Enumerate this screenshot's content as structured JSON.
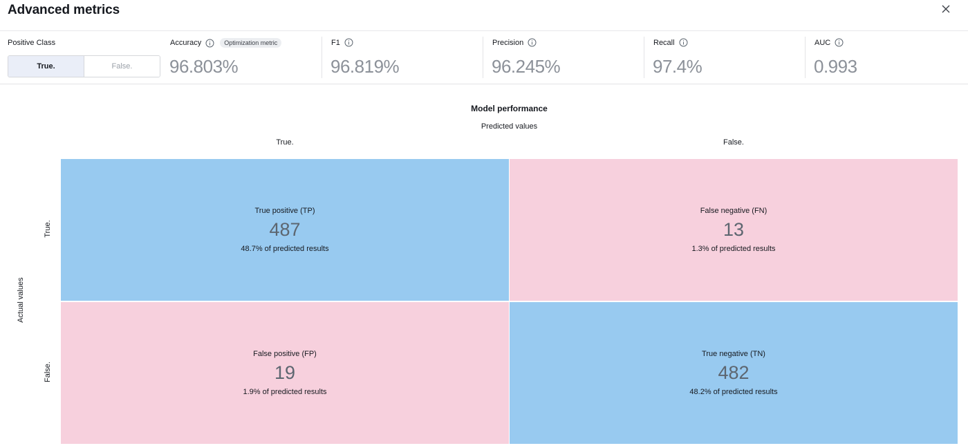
{
  "header": {
    "title": "Advanced metrics",
    "close_icon": "close-icon"
  },
  "positive_class": {
    "label": "Positive Class",
    "options": [
      "True.",
      "False."
    ],
    "selected": "True."
  },
  "metrics": [
    {
      "key": "accuracy",
      "label": "Accuracy",
      "value": "96.803%",
      "badge": "Optimization metric"
    },
    {
      "key": "f1",
      "label": "F1",
      "value": "96.819%"
    },
    {
      "key": "precision",
      "label": "Precision",
      "value": "96.245%"
    },
    {
      "key": "recall",
      "label": "Recall",
      "value": "97.4%"
    },
    {
      "key": "auc",
      "label": "AUC",
      "value": "0.993"
    }
  ],
  "chart": {
    "title": "Model performance",
    "predicted_label": "Predicted values",
    "actual_label": "Actual values",
    "columns": [
      "True.",
      "False."
    ],
    "rows": [
      "True.",
      "False."
    ]
  },
  "chart_data": {
    "type": "heatmap",
    "title": "Model performance",
    "xlabel": "Predicted values",
    "ylabel": "Actual values",
    "x_categories": [
      "True.",
      "False."
    ],
    "y_categories": [
      "True.",
      "False."
    ],
    "cells": [
      {
        "name": "True positive (TP)",
        "value": 487,
        "pct": "48.7% of predicted results",
        "actual": "True.",
        "predicted": "True.",
        "color": "#98caf0"
      },
      {
        "name": "False negative (FN)",
        "value": 13,
        "pct": "1.3% of predicted results",
        "actual": "True.",
        "predicted": "False.",
        "color": "#f7d0dd"
      },
      {
        "name": "False positive (FP)",
        "value": 19,
        "pct": "1.9% of predicted results",
        "actual": "False.",
        "predicted": "True.",
        "color": "#f7d0dd"
      },
      {
        "name": "True negative (TN)",
        "value": 482,
        "pct": "48.2% of predicted results",
        "actual": "False.",
        "predicted": "False.",
        "color": "#98caf0"
      }
    ]
  }
}
